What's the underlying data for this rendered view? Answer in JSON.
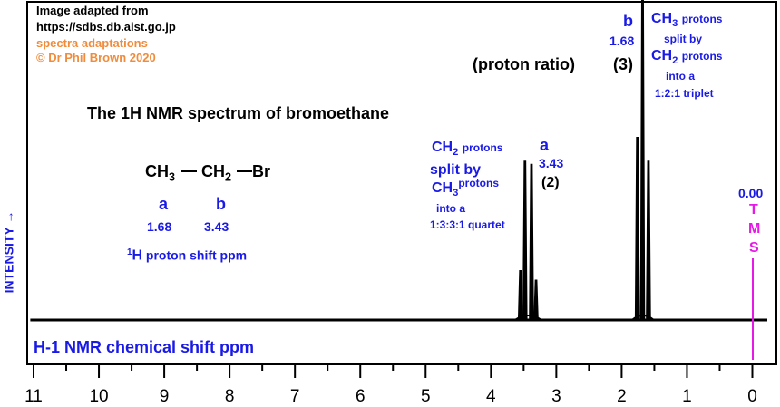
{
  "credits": {
    "line1": "Image adapted from",
    "line2": "https://sdbs.db.aist.go.jp",
    "line3": "spectra adaptations",
    "line4": "© Dr Phil Brown 2020"
  },
  "title": "The 1H NMR spectrum of bromoethane",
  "proton_ratio_label": "(proton ratio)",
  "molecule": {
    "ch3": "CH",
    "ch3_sub": "3",
    "ch2": "CH",
    "ch2_sub": "2",
    "br": "Br",
    "label_a": "a",
    "label_b": "b",
    "shift_a": "1.68",
    "shift_b": "3.43",
    "shift_caption_sup": "1",
    "shift_caption_h": "H",
    "shift_caption_rest": "proton shift  ppm"
  },
  "peak_a": {
    "letter": "a",
    "shift": "3.43",
    "ratio": "(2)",
    "desc1_main": "CH",
    "desc1_sub": "2",
    "desc1_rest": "protons",
    "desc2": "split by",
    "desc3_main": "CH",
    "desc3_sub": "3",
    "desc3_rest": "protons",
    "desc4": "into a",
    "desc5": "1:3:3:1 quartet"
  },
  "peak_b": {
    "letter": "b",
    "shift": "1.68",
    "ratio": "(3)",
    "desc1_main": "CH",
    "desc1_sub": "3",
    "desc1_rest": "protons",
    "desc2": "split by",
    "desc3_main": "CH",
    "desc3_sub": "2",
    "desc3_rest": "protons",
    "desc4": "into a",
    "desc5": "1:2:1 triplet"
  },
  "tms": {
    "shift": "0.00",
    "letters": [
      "T",
      "M",
      "S"
    ]
  },
  "y_axis_label": "INTENSITY",
  "y_axis_arrow": "→",
  "x_axis_label": "H-1 NMR chemical shift  ppm",
  "colors": {
    "blue": "#1a1ae6",
    "magenta": "#e619e6",
    "orange": "#f08c3c",
    "trace": "#000000"
  },
  "chart_data": {
    "type": "line",
    "xlabel": "H-1 NMR chemical shift  ppm",
    "ylabel": "INTENSITY",
    "xlim": [
      11,
      0
    ],
    "x_ticks": [
      "11",
      "10",
      "9",
      "8",
      "7",
      "6",
      "5",
      "4",
      "3",
      "2",
      "1",
      "0"
    ],
    "grid": false,
    "peaks": [
      {
        "group": "a",
        "shift": 3.43,
        "ratio": 2,
        "multiplicity": "quartet",
        "lines": [
          {
            "ppm": 3.55,
            "rel_height": 0.31
          },
          {
            "ppm": 3.48,
            "rel_height": 1.0
          },
          {
            "ppm": 3.38,
            "rel_height": 0.98
          },
          {
            "ppm": 3.31,
            "rel_height": 0.25
          }
        ]
      },
      {
        "group": "b",
        "shift": 1.68,
        "ratio": 3,
        "multiplicity": "triplet",
        "lines": [
          {
            "ppm": 1.76,
            "rel_height": 1.15
          },
          {
            "ppm": 1.68,
            "rel_height": 2.15
          },
          {
            "ppm": 1.59,
            "rel_height": 1.0
          }
        ]
      },
      {
        "group": "TMS",
        "shift": 0.0,
        "reference": true
      }
    ]
  }
}
